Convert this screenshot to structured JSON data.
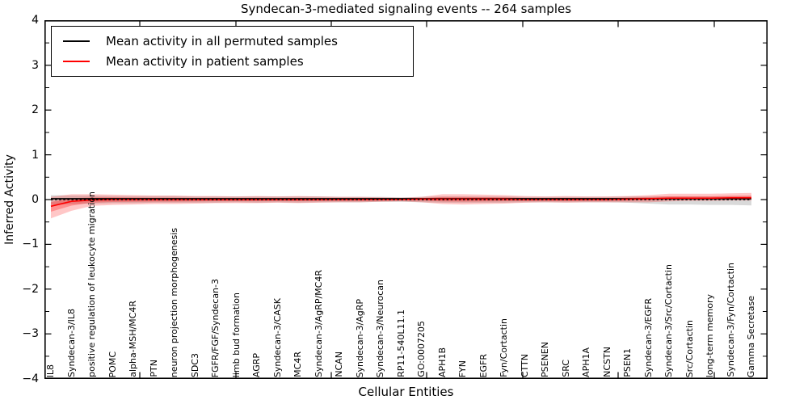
{
  "figure": {
    "title": "Syndecan-3-mediated signaling events -- 264 samples",
    "xlabel": "Cellular Entities",
    "ylabel": "Inferred Activity"
  },
  "legend": {
    "items": [
      {
        "label": "Mean activity in all permuted samples",
        "color": "#000000"
      },
      {
        "label": "Mean activity in patient samples",
        "color": "#ff0000"
      }
    ]
  },
  "chart_data": {
    "type": "line",
    "title": "Syndecan-3-mediated signaling events -- 264 samples",
    "xlabel": "Cellular Entities",
    "ylabel": "Inferred Activity",
    "ylim": [
      -4,
      4
    ],
    "yticks": [
      -4,
      -3,
      -2,
      -1,
      0,
      1,
      2,
      3,
      4
    ],
    "grid": false,
    "legend_position": "upper left",
    "categories": [
      "IL8",
      "Syndecan-3/IL8",
      "positive regulation of leukocyte migration",
      "POMC",
      "alpha-MSH/MC4R",
      "PTN",
      "neuron projection morphogenesis",
      "SDC3",
      "FGFR/FGF/Syndecan-3",
      "limb bud formation",
      "AGRP",
      "Syndecan-3/CASK",
      "MC4R",
      "Syndecan-3/AgRP/MC4R",
      "NCAN",
      "Syndecan-3/AgRP",
      "Syndecan-3/Neurocan",
      "RP11-540L11.1",
      "GO:0007205",
      "APH1B",
      "FYN",
      "EGFR",
      "Fyn/Cortactin",
      "CTTN",
      "PSENEN",
      "SRC",
      "APH1A",
      "NCSTN",
      "PSEN1",
      "Syndecan-3/EGFR",
      "Syndecan-3/Src/Cortactin",
      "Src/Cortactin",
      "long-term memory",
      "Syndecan-3/Fyn/Cortactin",
      "Gamma Secretase"
    ],
    "series": [
      {
        "name": "Mean activity in all permuted samples",
        "color": "#000000",
        "style": "solid",
        "values": [
          0.02,
          0.02,
          0.02,
          0.02,
          0.02,
          0.02,
          0.02,
          0.02,
          0.02,
          0.02,
          0.02,
          0.02,
          0.02,
          0.02,
          0.02,
          0.02,
          0.02,
          0.02,
          0.02,
          0.02,
          0.02,
          0.02,
          0.02,
          0.02,
          0.02,
          0.02,
          0.02,
          0.02,
          0.02,
          0.02,
          0.02,
          0.02,
          0.02,
          0.02,
          0.02
        ]
      },
      {
        "name": "Mean activity in patient samples",
        "color": "#ff0000",
        "style": "solid",
        "values": [
          -0.15,
          -0.04,
          -0.01,
          0,
          0,
          0,
          0,
          0,
          0,
          0,
          0,
          0,
          0,
          0,
          0,
          0,
          0,
          0,
          0.01,
          0.01,
          0.01,
          0.01,
          0.01,
          0,
          0,
          0,
          0,
          0,
          0.01,
          0.02,
          0.03,
          0.03,
          0.03,
          0.04,
          0.04
        ]
      }
    ],
    "bands": [
      {
        "name": "permuted-samples-std-band",
        "color": "#000000",
        "fill_opacity": 0.15,
        "lower": [
          -0.12,
          -0.1,
          -0.09,
          -0.08,
          -0.08,
          -0.07,
          -0.07,
          -0.07,
          -0.07,
          -0.06,
          -0.07,
          -0.06,
          -0.07,
          -0.06,
          -0.06,
          -0.06,
          -0.05,
          -0.05,
          -0.06,
          -0.07,
          -0.07,
          -0.07,
          -0.07,
          -0.06,
          -0.06,
          -0.06,
          -0.06,
          -0.06,
          -0.07,
          -0.09,
          -0.11,
          -0.11,
          -0.12,
          -0.12,
          -0.13
        ],
        "upper": [
          0.1,
          0.09,
          0.09,
          0.08,
          0.08,
          0.08,
          0.08,
          0.07,
          0.07,
          0.07,
          0.07,
          0.07,
          0.07,
          0.07,
          0.06,
          0.06,
          0.06,
          0.05,
          0.06,
          0.07,
          0.07,
          0.07,
          0.07,
          0.06,
          0.06,
          0.06,
          0.06,
          0.06,
          0.07,
          0.07,
          0.07,
          0.07,
          0.07,
          0.07,
          0.07
        ]
      },
      {
        "name": "patient-samples-std-band",
        "color": "#ff0000",
        "fill_opacity": 0.22,
        "lower": [
          -0.42,
          -0.25,
          -0.14,
          -0.12,
          -0.11,
          -0.1,
          -0.1,
          -0.09,
          -0.08,
          -0.08,
          -0.08,
          -0.07,
          -0.08,
          -0.07,
          -0.06,
          -0.06,
          -0.05,
          -0.04,
          -0.06,
          -0.1,
          -0.11,
          -0.1,
          -0.09,
          -0.07,
          -0.06,
          -0.07,
          -0.06,
          -0.06,
          -0.06,
          -0.06,
          -0.04,
          -0.03,
          -0.03,
          -0.02,
          -0.02
        ],
        "upper": [
          0.06,
          0.12,
          0.12,
          0.11,
          0.1,
          0.09,
          0.09,
          0.08,
          0.08,
          0.07,
          0.08,
          0.07,
          0.08,
          0.07,
          0.06,
          0.06,
          0.05,
          0.04,
          0.06,
          0.12,
          0.12,
          0.11,
          0.1,
          0.08,
          0.07,
          0.08,
          0.07,
          0.07,
          0.08,
          0.1,
          0.13,
          0.13,
          0.13,
          0.14,
          0.15
        ]
      }
    ],
    "zero_reference_line": {
      "y": 0,
      "style": "dashed",
      "color": "#000000"
    }
  }
}
